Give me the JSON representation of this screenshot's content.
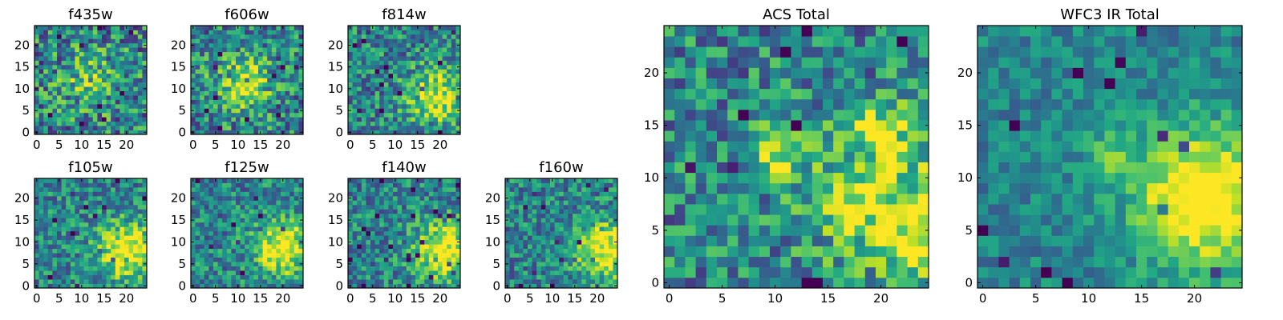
{
  "figure": {
    "colormap": "viridis"
  },
  "chart_data": [
    {
      "type": "heatmap",
      "title": "f435w",
      "grid_size": 25,
      "xlim": [
        0,
        24
      ],
      "ylim": [
        0,
        24
      ],
      "xticks": [
        0,
        5,
        10,
        15,
        20
      ],
      "yticks": [
        0,
        5,
        10,
        15,
        20
      ],
      "center": [
        12,
        12
      ],
      "peak": 0.25,
      "noise": 0.55,
      "seed": 11
    },
    {
      "type": "heatmap",
      "title": "f606w",
      "grid_size": 25,
      "xlim": [
        0,
        24
      ],
      "ylim": [
        0,
        24
      ],
      "xticks": [
        0,
        5,
        10,
        15,
        20
      ],
      "yticks": [
        0,
        5,
        10,
        15,
        20
      ],
      "center": [
        11,
        11
      ],
      "peak": 0.45,
      "noise": 0.5,
      "seed": 23
    },
    {
      "type": "heatmap",
      "title": "f814w",
      "grid_size": 25,
      "xlim": [
        0,
        24
      ],
      "ylim": [
        0,
        24
      ],
      "xticks": [
        0,
        5,
        10,
        15,
        20
      ],
      "yticks": [
        0,
        5,
        10,
        15,
        20
      ],
      "center": [
        19,
        8
      ],
      "peak": 0.5,
      "noise": 0.45,
      "seed": 37
    },
    {
      "type": "heatmap",
      "title": "f105w",
      "grid_size": 25,
      "xlim": [
        0,
        24
      ],
      "ylim": [
        0,
        24
      ],
      "xticks": [
        0,
        5,
        10,
        15,
        20
      ],
      "yticks": [
        0,
        5,
        10,
        15,
        20
      ],
      "center": [
        20,
        8
      ],
      "peak": 0.6,
      "noise": 0.4,
      "seed": 41
    },
    {
      "type": "heatmap",
      "title": "f125w",
      "grid_size": 25,
      "xlim": [
        0,
        24
      ],
      "ylim": [
        0,
        24
      ],
      "xticks": [
        0,
        5,
        10,
        15,
        20
      ],
      "yticks": [
        0,
        5,
        10,
        15,
        20
      ],
      "center": [
        20,
        9
      ],
      "peak": 0.6,
      "noise": 0.4,
      "seed": 53
    },
    {
      "type": "heatmap",
      "title": "f140w",
      "grid_size": 25,
      "xlim": [
        0,
        24
      ],
      "ylim": [
        0,
        24
      ],
      "xticks": [
        0,
        5,
        10,
        15,
        20
      ],
      "yticks": [
        0,
        5,
        10,
        15,
        20
      ],
      "center": [
        21,
        8
      ],
      "peak": 0.6,
      "noise": 0.4,
      "seed": 67
    },
    {
      "type": "heatmap",
      "title": "f160w",
      "grid_size": 25,
      "xlim": [
        0,
        24
      ],
      "ylim": [
        0,
        24
      ],
      "xticks": [
        0,
        5,
        10,
        15,
        20
      ],
      "yticks": [
        0,
        5,
        10,
        15,
        20
      ],
      "center": [
        22,
        8
      ],
      "peak": 0.6,
      "noise": 0.4,
      "seed": 79
    },
    {
      "type": "heatmap",
      "title": "ACS Total",
      "grid_size": 25,
      "xlim": [
        0,
        24
      ],
      "ylim": [
        0,
        24
      ],
      "xticks": [
        0,
        5,
        10,
        15,
        20
      ],
      "yticks": [
        0,
        5,
        10,
        15,
        20
      ],
      "center": [
        20,
        8
      ],
      "peak": 0.45,
      "noise": 0.45,
      "seed": 97,
      "hotspots": [
        [
          10,
          12,
          0.5
        ],
        [
          20,
          15,
          0.45
        ],
        [
          24,
          3,
          0.5
        ]
      ]
    },
    {
      "type": "heatmap",
      "title": "WFC3 IR Total",
      "grid_size": 25,
      "xlim": [
        0,
        24
      ],
      "ylim": [
        0,
        24
      ],
      "xticks": [
        0,
        5,
        10,
        15,
        20
      ],
      "yticks": [
        0,
        5,
        10,
        15,
        20
      ],
      "center": [
        21,
        8
      ],
      "peak": 0.7,
      "noise": 0.25,
      "seed": 113,
      "hotspots": [
        [
          12,
          12,
          0.3
        ]
      ]
    }
  ]
}
